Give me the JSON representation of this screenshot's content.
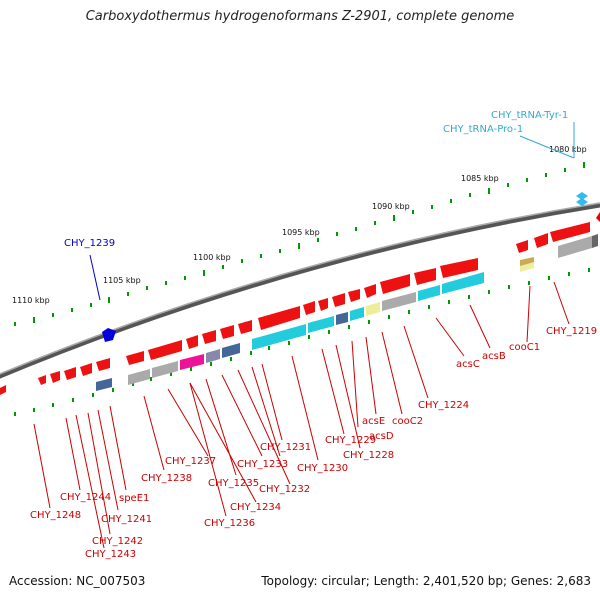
{
  "title": "Carboxydothermus hydrogenoformans Z-2901, complete genome",
  "footer": {
    "accession": "Accession: NC_007503",
    "summary": "Topology: circular; Length: 2,401,520 bp; Genes: 2,683"
  },
  "colors": {
    "red": "#ff0000",
    "blue": "#0000cc",
    "cyan": "#33ccee",
    "tick": "#009900",
    "backbone": "#666666"
  },
  "ticks": [
    "1080 kbp",
    "1085 kbp",
    "1090 kbp",
    "1095 kbp",
    "1100 kbp",
    "1105 kbp",
    "1110 kbp"
  ],
  "labels": [
    {
      "text": "CHY_tRNA-Tyr-1",
      "color": "#33aacc"
    },
    {
      "text": "CHY_tRNA-Pro-1",
      "color": "#33aacc"
    },
    {
      "text": "CHY_1239",
      "color": "#0000cc"
    },
    {
      "text": "CHY_1219",
      "color": "#cc0000"
    },
    {
      "text": "cooC1",
      "color": "#cc0000"
    },
    {
      "text": "acsB",
      "color": "#cc0000"
    },
    {
      "text": "acsC",
      "color": "#cc0000"
    },
    {
      "text": "CHY_1224",
      "color": "#cc0000"
    },
    {
      "text": "cooC2",
      "color": "#cc0000"
    },
    {
      "text": "acsE",
      "color": "#cc0000"
    },
    {
      "text": "acsD",
      "color": "#cc0000"
    },
    {
      "text": "CHY_1228",
      "color": "#cc0000"
    },
    {
      "text": "CHY_1229",
      "color": "#cc0000"
    },
    {
      "text": "CHY_1230",
      "color": "#cc0000"
    },
    {
      "text": "CHY_1231",
      "color": "#cc0000"
    },
    {
      "text": "CHY_1233",
      "color": "#cc0000"
    },
    {
      "text": "CHY_1232",
      "color": "#cc0000"
    },
    {
      "text": "CHY_1235",
      "color": "#cc0000"
    },
    {
      "text": "CHY_1234",
      "color": "#cc0000"
    },
    {
      "text": "CHY_1237",
      "color": "#cc0000"
    },
    {
      "text": "CHY_1236",
      "color": "#cc0000"
    },
    {
      "text": "CHY_1238",
      "color": "#cc0000"
    },
    {
      "text": "speE1",
      "color": "#cc0000"
    },
    {
      "text": "CHY_1244",
      "color": "#cc0000"
    },
    {
      "text": "CHY_1241",
      "color": "#cc0000"
    },
    {
      "text": "CHY_1248",
      "color": "#cc0000"
    },
    {
      "text": "CHY_1242",
      "color": "#cc0000"
    },
    {
      "text": "CHY_1243",
      "color": "#cc0000"
    }
  ]
}
